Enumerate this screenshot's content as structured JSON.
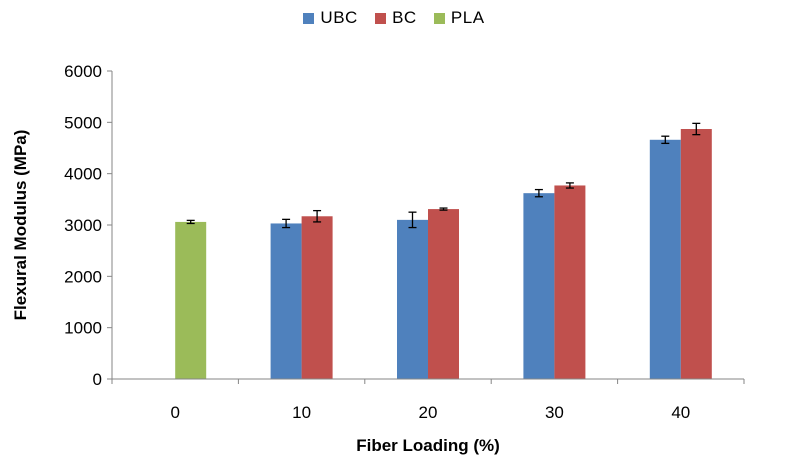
{
  "chart_data": {
    "type": "bar",
    "xlabel": "Fiber Loading (%)",
    "ylabel": "Flexural Modulus (MPa)",
    "categories": [
      "0",
      "10",
      "20",
      "30",
      "40"
    ],
    "ylim": [
      0,
      6000
    ],
    "yticks": [
      0,
      1000,
      2000,
      3000,
      4000,
      5000,
      6000
    ],
    "grid": false,
    "legend_position": "top",
    "series": [
      {
        "name": "UBC",
        "color": "#4f81bd",
        "values": [
          null,
          3030,
          3100,
          3620,
          4660
        ],
        "errors": [
          null,
          80,
          150,
          70,
          70
        ]
      },
      {
        "name": "BC",
        "color": "#c0504d",
        "values": [
          null,
          3170,
          3310,
          3770,
          4870
        ],
        "errors": [
          null,
          110,
          20,
          50,
          110
        ]
      },
      {
        "name": "PLA",
        "color": "#9bbb59",
        "values": [
          3060,
          null,
          null,
          null,
          null
        ],
        "errors": [
          30,
          null,
          null,
          null,
          null
        ]
      }
    ]
  }
}
